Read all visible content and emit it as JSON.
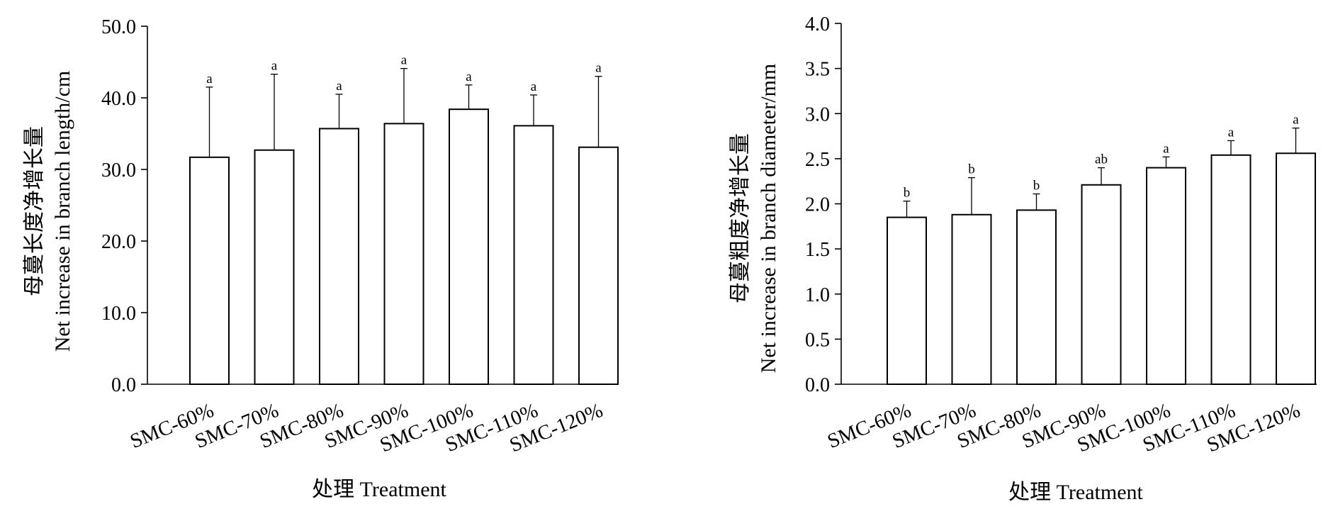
{
  "chart_data": [
    {
      "type": "bar",
      "categories": [
        "SMC-60%",
        "SMC-70%",
        "SMC-80%",
        "SMC-90%",
        "SMC-100%",
        "SMC-110%",
        "SMC-120%"
      ],
      "values": [
        31.7,
        32.7,
        35.7,
        36.4,
        38.4,
        36.1,
        33.1
      ],
      "errors": [
        9.8,
        10.6,
        4.8,
        7.7,
        3.4,
        4.3,
        9.9
      ],
      "significance": [
        "a",
        "a",
        "a",
        "a",
        "a",
        "a",
        "a"
      ],
      "ylim": [
        0,
        50
      ],
      "yticks": [
        0,
        10,
        20,
        30,
        40,
        50
      ],
      "ytick_labels": [
        "0.0",
        "10.0",
        "20.0",
        "30.0",
        "40.0",
        "50.0"
      ],
      "ylabel_cn": "母蔓长度净增长量",
      "ylabel_en": "Net increase in branch length/cm",
      "xlabel": "处理  Treatment",
      "grid": false
    },
    {
      "type": "bar",
      "categories": [
        "SMC-60%",
        "SMC-70%",
        "SMC-80%",
        "SMC-90%",
        "SMC-100%",
        "SMC-110%",
        "SMC-120%"
      ],
      "values": [
        1.85,
        1.88,
        1.93,
        2.21,
        2.4,
        2.54,
        2.56
      ],
      "errors": [
        0.18,
        0.41,
        0.18,
        0.19,
        0.12,
        0.16,
        0.28
      ],
      "significance": [
        "b",
        "b",
        "b",
        "ab",
        "a",
        "a",
        "a"
      ],
      "ylim": [
        0,
        4
      ],
      "yticks": [
        0,
        0.5,
        1,
        1.5,
        2,
        2.5,
        3,
        3.5,
        4
      ],
      "ytick_labels": [
        "0.0",
        "0.5",
        "1.0",
        "1.5",
        "2.0",
        "2.5",
        "3.0",
        "3.5",
        "4.0"
      ],
      "ylabel_cn": "母蔓粗度净增长量",
      "ylabel_en": "Net increase in branch diameter/mm",
      "xlabel": "处理  Treatment",
      "grid": false
    }
  ]
}
